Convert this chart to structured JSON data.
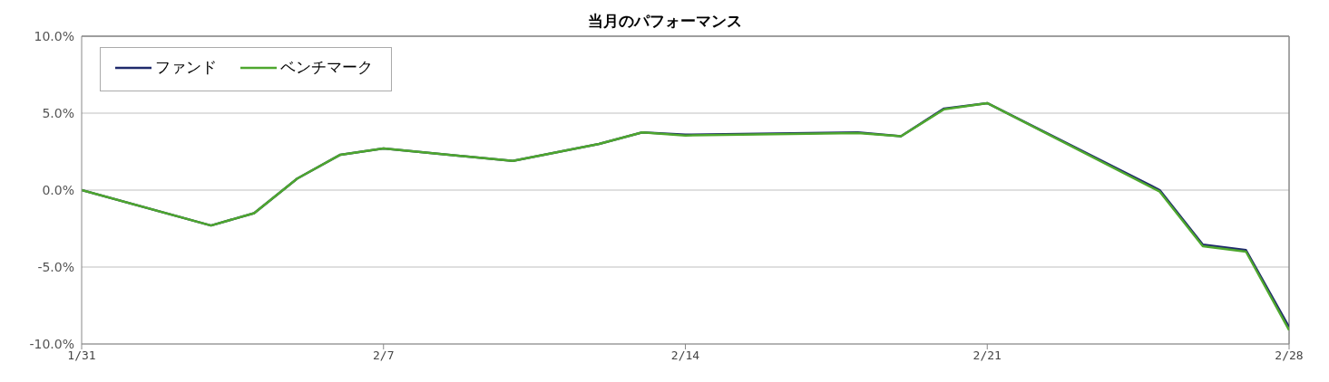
{
  "chart_data": {
    "type": "line",
    "title": "当月のパフォーマンス",
    "x": [
      "--01-31",
      "--02-03",
      "--02-04",
      "--02-05",
      "--02-06",
      "--02-07",
      "--02-10",
      "--02-12",
      "--02-13",
      "--02-14",
      "--02-18",
      "--02-19",
      "--02-20",
      "--02-21",
      "--02-25",
      "--02-26",
      "--02-27",
      "--02-28"
    ],
    "series": [
      {
        "name": "ファンド",
        "color": "#1f2a6b",
        "values": [
          0,
          -2.3,
          -1.5,
          0.75,
          2.3,
          2.7,
          1.9,
          3.0,
          3.75,
          3.6,
          3.75,
          3.5,
          5.3,
          5.65,
          0.0,
          -3.55,
          -3.9,
          -8.9
        ]
      },
      {
        "name": "ベンチマーク",
        "color": "#4ea72e",
        "values": [
          0,
          -2.3,
          -1.5,
          0.75,
          2.3,
          2.7,
          1.9,
          3.0,
          3.75,
          3.55,
          3.7,
          3.5,
          5.25,
          5.65,
          -0.1,
          -3.65,
          -4.0,
          -9.1
        ]
      }
    ],
    "xlim": [
      "--01-31",
      "--02-28"
    ],
    "xticks": [
      {
        "value": "--01-31",
        "label": "1/31"
      },
      {
        "value": "--02-07",
        "label": "2/7"
      },
      {
        "value": "--02-14",
        "label": "2/14"
      },
      {
        "value": "--02-21",
        "label": "2/21"
      },
      {
        "value": "--02-28",
        "label": "2/28"
      }
    ],
    "ylim": [
      -10,
      10
    ],
    "yticks": [
      {
        "value": -10,
        "label": "-10.0%"
      },
      {
        "value": -5,
        "label": "-5.0%"
      },
      {
        "value": 0,
        "label": "0.0%"
      },
      {
        "value": 5,
        "label": "5.0%"
      },
      {
        "value": 10,
        "label": "10.0%"
      }
    ],
    "grid": "y",
    "legend": "top left",
    "marker": "none",
    "line_style": "solid"
  }
}
